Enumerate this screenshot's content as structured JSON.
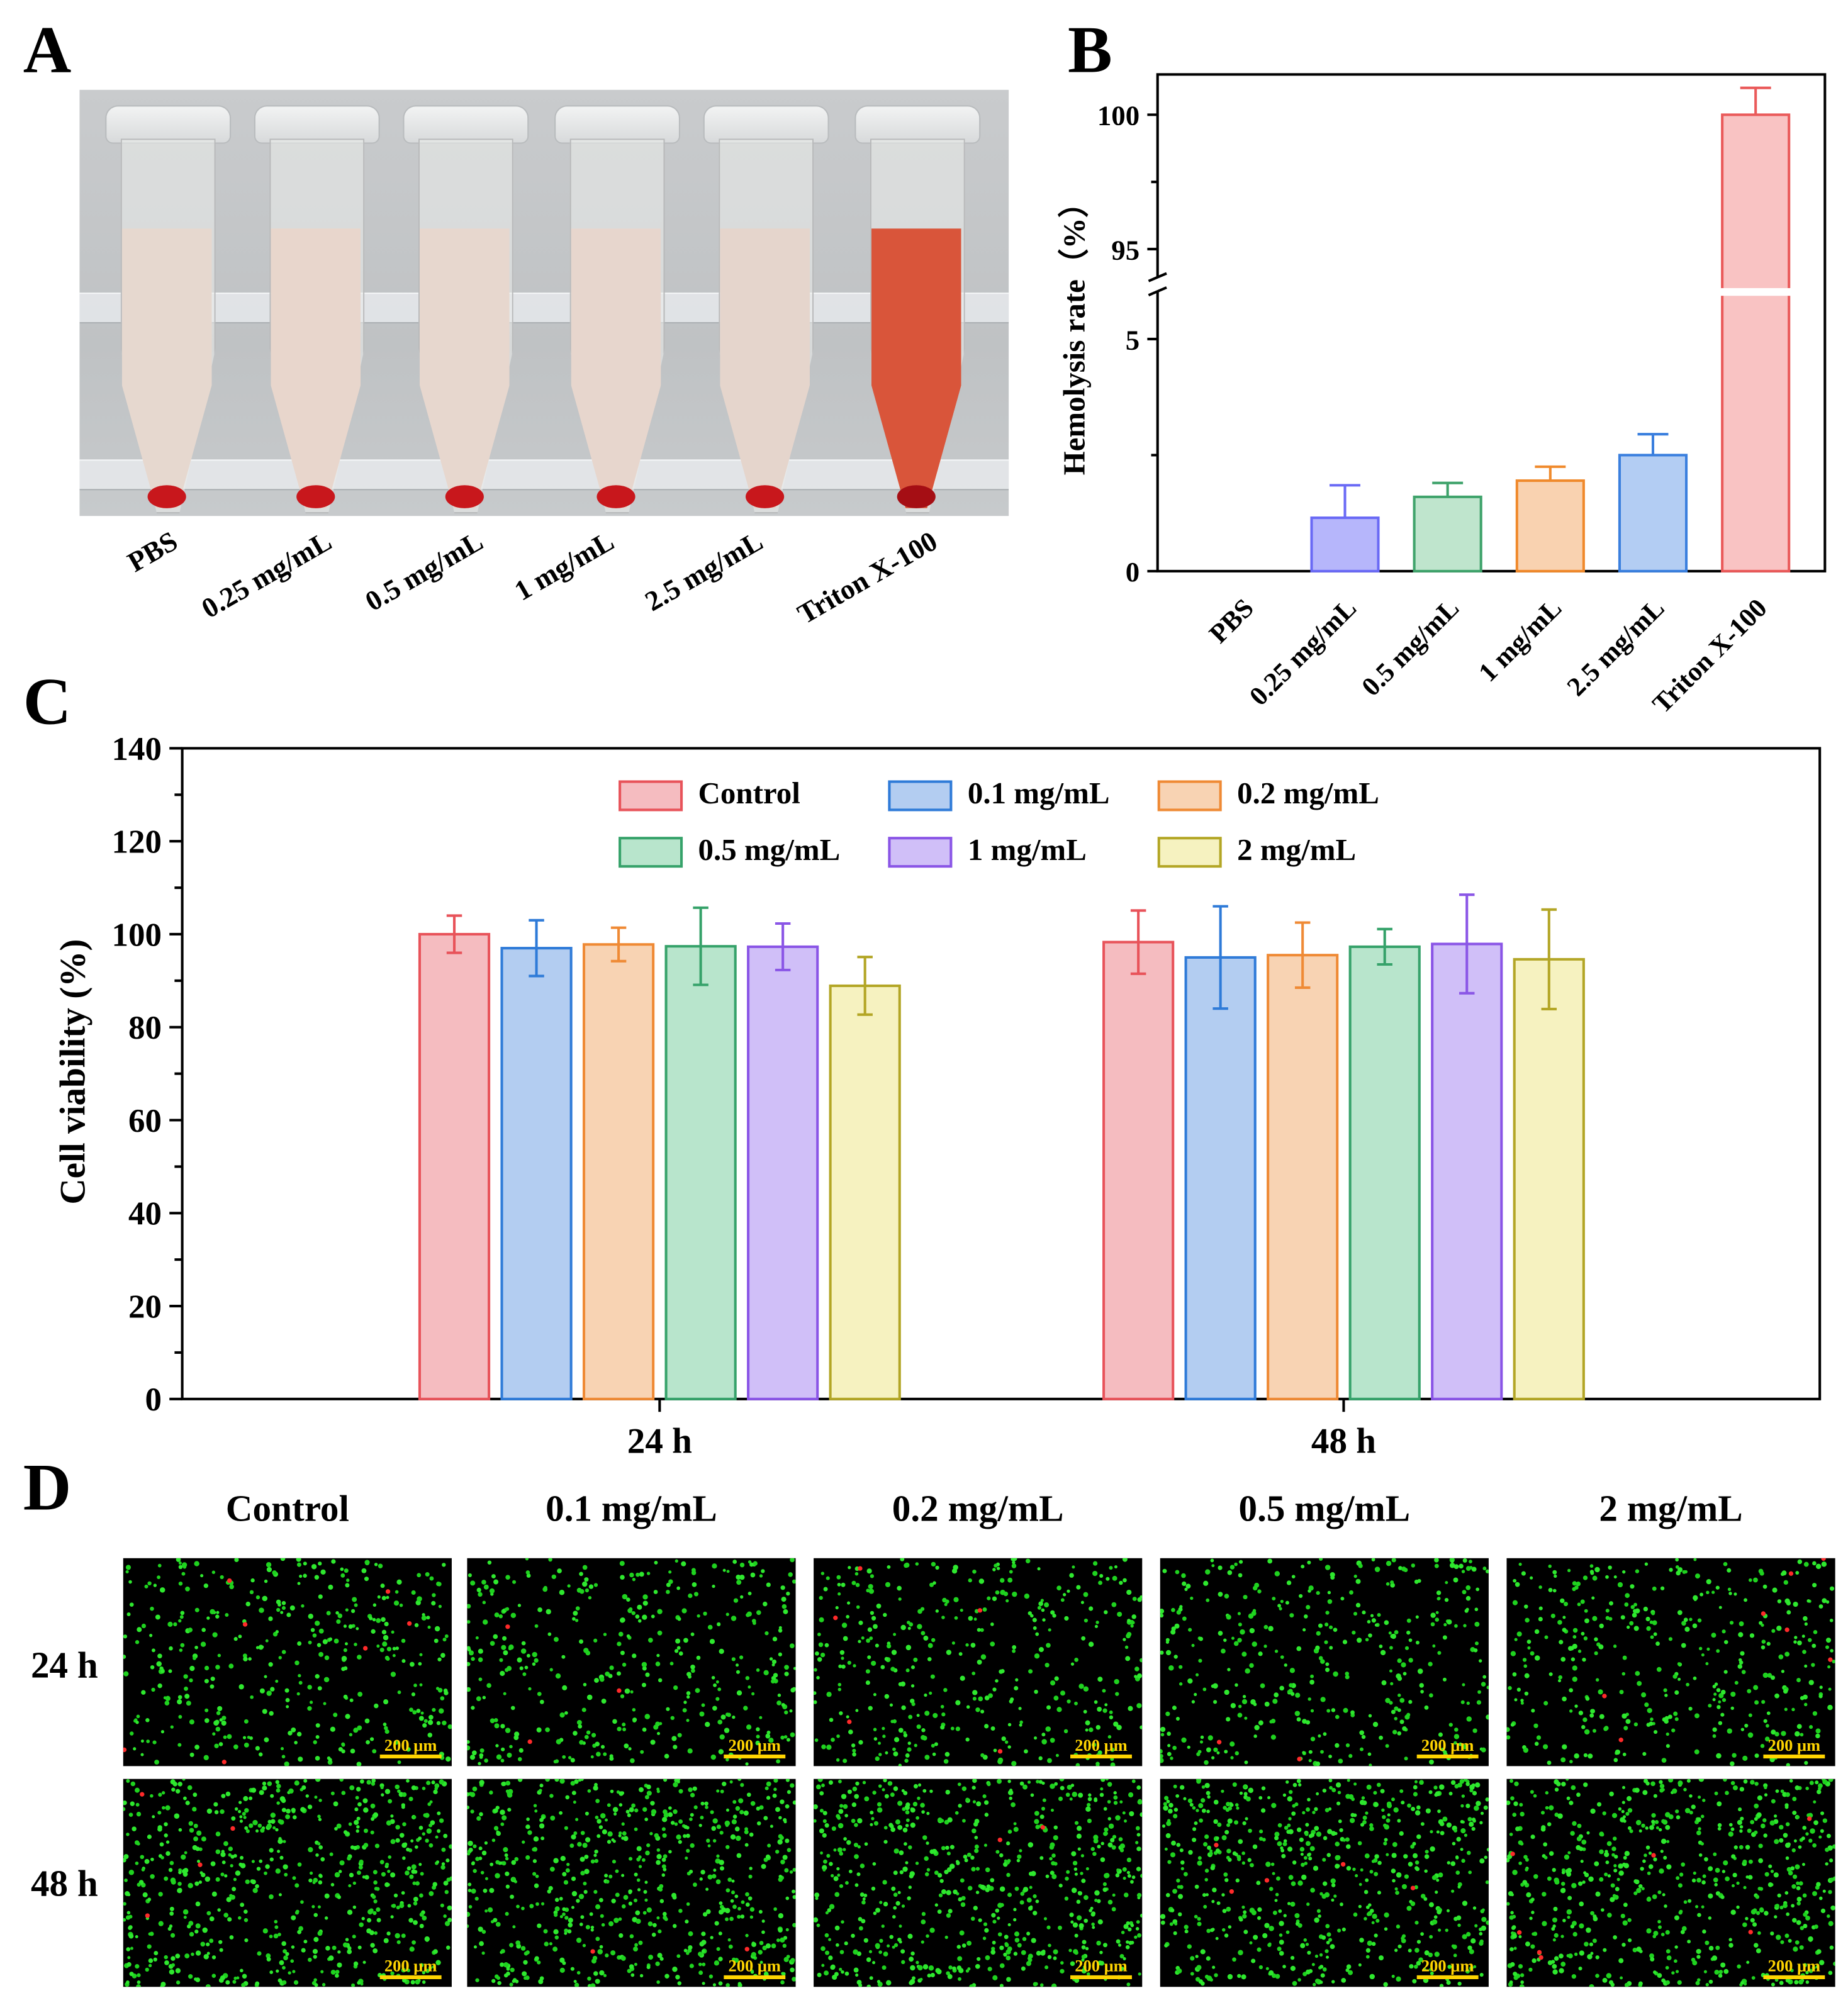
{
  "panels": {
    "a": "A",
    "b": "B",
    "c": "C",
    "d": "D"
  },
  "panel_a": {
    "tubes": [
      {
        "label": "PBS",
        "liquid_color": "#e6d8cf",
        "pellet_color": "#c8171c"
      },
      {
        "label": "0.25 mg/mL",
        "liquid_color": "#e8d6cc",
        "pellet_color": "#c8171c"
      },
      {
        "label": "0.5 mg/mL",
        "liquid_color": "#e7d7ce",
        "pellet_color": "#c8171c"
      },
      {
        "label": "1 mg/mL",
        "liquid_color": "#e7d6cd",
        "pellet_color": "#c8171c"
      },
      {
        "label": "2.5 mg/mL",
        "liquid_color": "#e5d5cc",
        "pellet_color": "#c8171c"
      },
      {
        "label": "Triton X-100",
        "liquid_color": "#d9553a",
        "pellet_color": "#a50e14"
      }
    ]
  },
  "chart_data": [
    {
      "id": "B",
      "type": "bar",
      "ylabel": "Hemolysis rate（%）",
      "categories": [
        "PBS",
        "0.25 mg/mL",
        "0.5 mg/mL",
        "1 mg/mL",
        "2.5 mg/mL",
        "Triton X-100"
      ],
      "values": [
        0,
        1.15,
        1.6,
        1.95,
        2.5,
        100
      ],
      "errors": [
        0,
        0.7,
        0.3,
        0.3,
        0.45,
        1.0
      ],
      "colors": [
        "#ffffff",
        "#6a6af5",
        "#3fa36b",
        "#f08a2c",
        "#3a7fde",
        "#ea5a5a"
      ],
      "fills": [
        "#ffffff",
        "#b6b6fb",
        "#bfe5cd",
        "#f9d2b0",
        "#b3cdf3",
        "#f9c3c3"
      ],
      "y_axis_break": [
        6,
        94
      ],
      "ylim_lower": [
        0,
        6
      ],
      "ylim_upper": [
        94,
        101.5
      ],
      "yticks": [
        {
          "value": 0,
          "label": "0"
        },
        {
          "value": 5,
          "label": "5"
        },
        {
          "value": 95,
          "label": "95"
        },
        {
          "value": 100,
          "label": "100"
        }
      ],
      "minor_ticks": [
        2.5,
        97.5
      ]
    },
    {
      "id": "C",
      "type": "bar",
      "ylabel": "Cell viability (%)",
      "categories": [
        "24 h",
        "48 h"
      ],
      "ylim": [
        0,
        140
      ],
      "yticks": [
        0,
        20,
        40,
        60,
        80,
        100,
        120,
        140
      ],
      "series": [
        {
          "name": "Control",
          "values": [
            100,
            98.3
          ],
          "errors": [
            4,
            6.8
          ],
          "color": "#e8535a",
          "fill": "#f5bcc0"
        },
        {
          "name": "0.1 mg/mL",
          "values": [
            97,
            95
          ],
          "errors": [
            6,
            11
          ],
          "color": "#2f7bd8",
          "fill": "#b3cdf1"
        },
        {
          "name": "0.2 mg/mL",
          "values": [
            97.8,
            95.5
          ],
          "errors": [
            3.6,
            7
          ],
          "color": "#ef8a35",
          "fill": "#f8d3b3"
        },
        {
          "name": "0.5 mg/mL",
          "values": [
            97.4,
            97.3
          ],
          "errors": [
            8.3,
            3.8
          ],
          "color": "#36a26a",
          "fill": "#b8e5cc"
        },
        {
          "name": "1 mg/mL",
          "values": [
            97.3,
            97.9
          ],
          "errors": [
            5,
            10.6
          ],
          "color": "#8a55e6",
          "fill": "#d0bff8"
        },
        {
          "name": "2 mg/mL",
          "values": [
            88.9,
            94.6
          ],
          "errors": [
            6.2,
            10.7
          ],
          "color": "#b3a626",
          "fill": "#f6f2c0"
        }
      ]
    }
  ],
  "panel_d": {
    "columns": [
      "Control",
      "0.1 mg/mL",
      "0.2 mg/mL",
      "0.5 mg/mL",
      "2 mg/mL"
    ],
    "rows": [
      "24 h",
      "48 h"
    ],
    "scale_bar": "200 μm"
  }
}
